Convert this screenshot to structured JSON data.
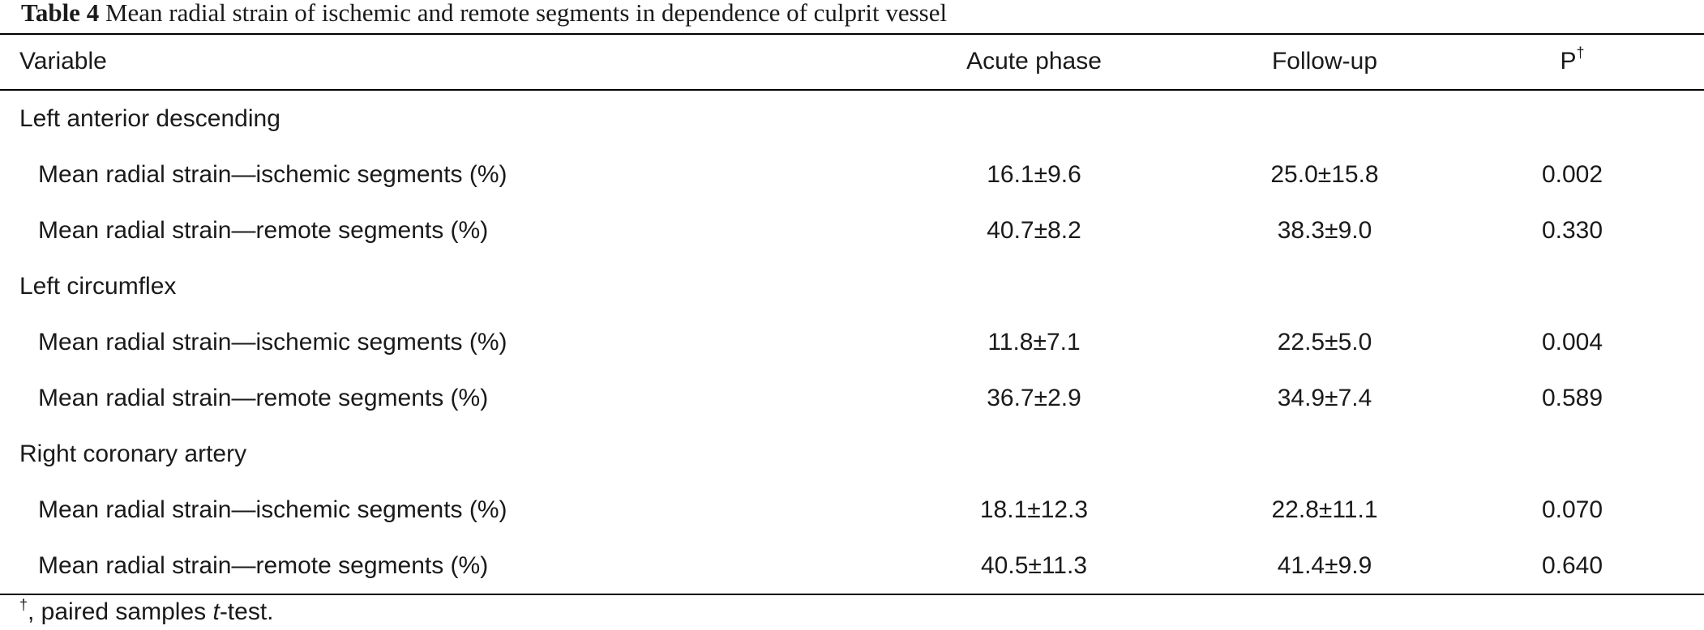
{
  "caption": {
    "label": "Table 4",
    "text": "Mean radial strain of ischemic and remote segments in dependence of culprit vessel"
  },
  "headers": {
    "variable": "Variable",
    "acute": "Acute phase",
    "followup": "Follow-up",
    "p": "P",
    "p_sup": "†"
  },
  "rows": [
    {
      "label": "Left anterior descending",
      "acute": "",
      "followup": "",
      "p": ""
    },
    {
      "label": "Mean radial strain—ischemic segments (%)",
      "acute": "16.1±9.6",
      "followup": "25.0±15.8",
      "p": "0.002"
    },
    {
      "label": "Mean radial strain—remote segments (%)",
      "acute": "40.7±8.2",
      "followup": "38.3±9.0",
      "p": "0.330"
    },
    {
      "label": "Left circumflex",
      "acute": "",
      "followup": "",
      "p": ""
    },
    {
      "label": "Mean radial strain—ischemic segments (%)",
      "acute": "11.8±7.1",
      "followup": "22.5±5.0",
      "p": "0.004"
    },
    {
      "label": "Mean radial strain—remote segments (%)",
      "acute": "36.7±2.9",
      "followup": "34.9±7.4",
      "p": "0.589"
    },
    {
      "label": "Right coronary artery",
      "acute": "",
      "followup": "",
      "p": ""
    },
    {
      "label": "Mean radial strain—ischemic segments (%)",
      "acute": "18.1±12.3",
      "followup": "22.8±11.1",
      "p": "0.070"
    },
    {
      "label": "Mean radial strain—remote segments (%)",
      "acute": "40.5±11.3",
      "followup": "41.4±9.9",
      "p": "0.640"
    }
  ],
  "footnote": {
    "mark": "†",
    "before": ", paired samples ",
    "italic": "t",
    "after": "-test."
  }
}
